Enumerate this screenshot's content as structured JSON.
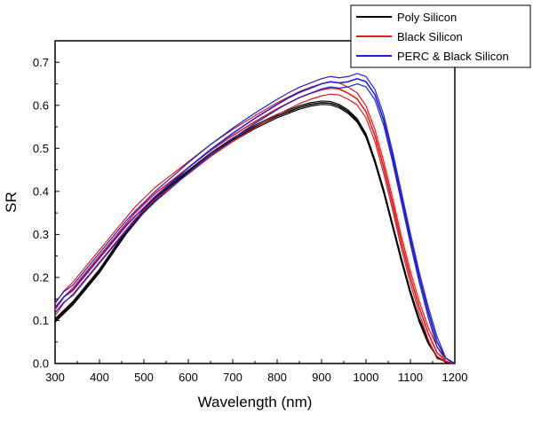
{
  "chart_data": {
    "type": "line",
    "title": "",
    "xlabel": "Wavelength (nm)",
    "ylabel": "SR",
    "xlim": [
      300,
      1200
    ],
    "ylim": [
      0.0,
      0.75
    ],
    "xticks": [
      300,
      400,
      500,
      600,
      700,
      800,
      900,
      1000,
      1100,
      1200
    ],
    "yticks": [
      0.0,
      0.1,
      0.2,
      0.3,
      0.4,
      0.5,
      0.6,
      0.7
    ],
    "grid": false,
    "legend_position": "top-right",
    "x": [
      300,
      320,
      340,
      360,
      380,
      400,
      420,
      440,
      460,
      480,
      500,
      525,
      550,
      575,
      600,
      650,
      700,
      750,
      800,
      825,
      850,
      875,
      900,
      920,
      940,
      960,
      980,
      1000,
      1020,
      1040,
      1060,
      1080,
      1100,
      1120,
      1140,
      1160,
      1180,
      1200
    ],
    "series": [
      {
        "name": "Poly Silicon",
        "color": "#000000",
        "values": [
          0.1,
          0.12,
          0.14,
          0.165,
          0.19,
          0.215,
          0.245,
          0.275,
          0.305,
          0.33,
          0.355,
          0.38,
          0.405,
          0.425,
          0.445,
          0.485,
          0.52,
          0.55,
          0.575,
          0.585,
          0.595,
          0.602,
          0.606,
          0.605,
          0.598,
          0.585,
          0.565,
          0.53,
          0.47,
          0.4,
          0.32,
          0.24,
          0.165,
          0.1,
          0.05,
          0.015,
          0.003,
          0.0
        ],
        "band": 0.004
      },
      {
        "name": "Black Silicon",
        "color": "#e41a1c",
        "values": [
          0.125,
          0.155,
          0.175,
          0.2,
          0.225,
          0.25,
          0.275,
          0.3,
          0.325,
          0.35,
          0.37,
          0.395,
          0.415,
          0.435,
          0.455,
          0.495,
          0.53,
          0.562,
          0.592,
          0.605,
          0.618,
          0.628,
          0.636,
          0.64,
          0.638,
          0.628,
          0.615,
          0.585,
          0.53,
          0.455,
          0.37,
          0.28,
          0.2,
          0.13,
          0.07,
          0.025,
          0.005,
          0.0
        ],
        "band": 0.014
      },
      {
        "name": "PERC & Black Silicon",
        "color": "#1f1fd6",
        "values": [
          0.13,
          0.155,
          0.17,
          0.195,
          0.22,
          0.245,
          0.27,
          0.295,
          0.32,
          0.342,
          0.362,
          0.388,
          0.41,
          0.432,
          0.455,
          0.497,
          0.535,
          0.57,
          0.602,
          0.617,
          0.63,
          0.64,
          0.65,
          0.655,
          0.652,
          0.655,
          0.662,
          0.655,
          0.625,
          0.565,
          0.48,
          0.385,
          0.29,
          0.2,
          0.12,
          0.05,
          0.012,
          0.0
        ],
        "band": 0.012
      }
    ]
  }
}
